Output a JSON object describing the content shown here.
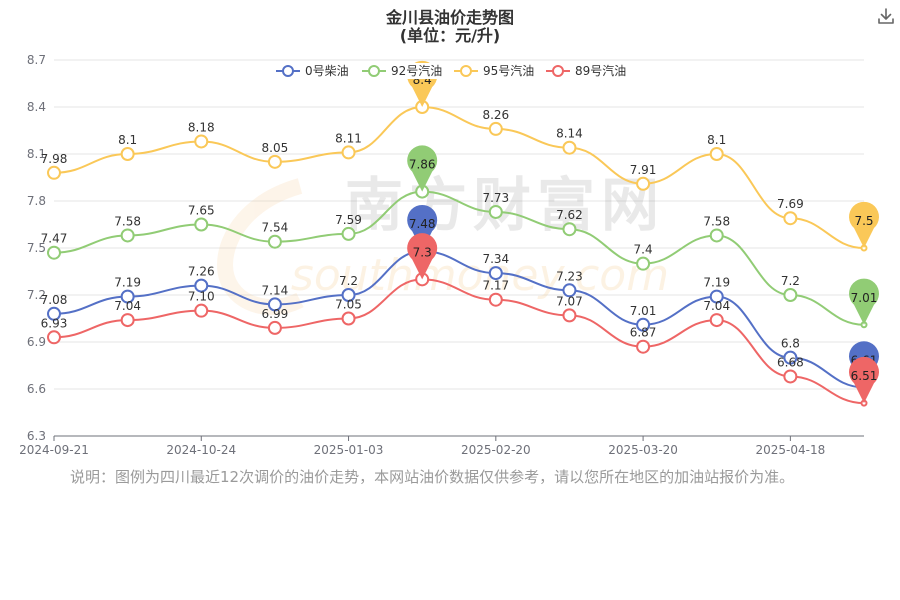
{
  "chart_data": {
    "type": "line",
    "title": "金川县油价走势图",
    "subtitle": "(单位：元/升)",
    "xlabel": "",
    "ylabel": "",
    "ylim": [
      6.3,
      8.7
    ],
    "y_ticks": [
      "6.3",
      "6.6",
      "6.9",
      "7.2",
      "7.5",
      "7.8",
      "8.1",
      "8.4",
      "8.7"
    ],
    "x_tick_labels": [
      "2024-09-21",
      "2024-10-24",
      "2025-01-03",
      "2025-02-20",
      "2025-03-20",
      "2025-04-18"
    ],
    "x_tick_index": [
      0,
      2,
      4,
      6,
      8,
      10
    ],
    "legend_position": "top-center",
    "grid": true,
    "watermark": "南方财富网 southmoney.com",
    "series": [
      {
        "name": "0号柴油",
        "color": "#5470c6",
        "values": [
          7.08,
          7.19,
          7.26,
          7.14,
          7.2,
          7.48,
          7.34,
          7.23,
          7.01,
          7.19,
          6.8,
          6.61
        ],
        "labels": [
          "7.08",
          "7.19",
          "7.26",
          "7.14",
          "7.2",
          "7.48",
          "7.34",
          "7.23",
          "7.01",
          "7.19",
          "6.8",
          "6.61"
        ],
        "max_index": 5,
        "min_index": 11
      },
      {
        "name": "92号汽油",
        "color": "#91cc75",
        "values": [
          7.47,
          7.58,
          7.65,
          7.54,
          7.59,
          7.86,
          7.73,
          7.62,
          7.4,
          7.58,
          7.2,
          7.01
        ],
        "labels": [
          "7.47",
          "7.58",
          "7.65",
          "7.54",
          "7.59",
          "7.86",
          "7.73",
          "7.62",
          "7.4",
          "7.58",
          "7.2",
          "7.01"
        ],
        "max_index": 5,
        "min_index": 11
      },
      {
        "name": "95号汽油",
        "color": "#fac858",
        "values": [
          7.98,
          8.1,
          8.18,
          8.05,
          8.11,
          8.4,
          8.26,
          8.14,
          7.91,
          8.1,
          7.69,
          7.5
        ],
        "labels": [
          "7.98",
          "8.1",
          "8.18",
          "8.05",
          "8.11",
          "8.4",
          "8.26",
          "8.14",
          "7.91",
          "8.1",
          "7.69",
          "7.5"
        ],
        "max_index": 5,
        "min_index": 11
      },
      {
        "name": "89号汽油",
        "color": "#ee6666",
        "values": [
          6.93,
          7.04,
          7.1,
          6.99,
          7.05,
          7.3,
          7.17,
          7.07,
          6.87,
          7.04,
          6.68,
          6.51
        ],
        "labels": [
          "6.93",
          "7.04",
          "7.10",
          "6.99",
          "7.05",
          "7.3",
          "7.17",
          "7.07",
          "6.87",
          "7.04",
          "6.68",
          "6.51"
        ],
        "max_index": 5,
        "min_index": 11
      }
    ]
  },
  "note": "说明：图例为四川最近12次调价的油价走势，本网站油价数据仅供参考，请以您所在地区的加油站报价为准。",
  "download_icon": "download-icon"
}
